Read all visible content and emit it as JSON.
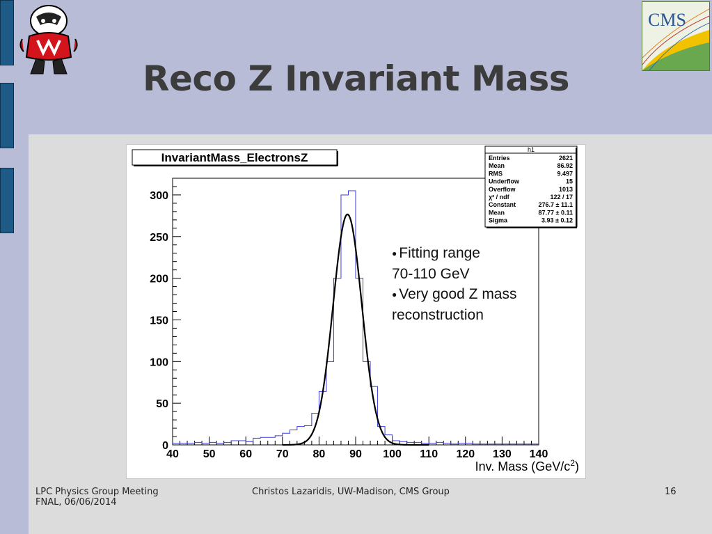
{
  "slide": {
    "title": "Reco Z Invariant Mass",
    "footer_left_line1": "LPC Physics Group Meeting",
    "footer_left_line2": "FNAL, 06/06/2014",
    "footer_center": "Christos Lazaridis, UW-Madison, CMS Group",
    "page_number": "16",
    "logos": [
      "badger-mascot-logo",
      "cms-logo"
    ],
    "cms_logo_text": "CMS",
    "bullets": [
      {
        "line1": "Fitting range",
        "line2": "70-110 GeV"
      },
      {
        "line1": "Very good Z mass",
        "line2": "reconstruction"
      }
    ]
  },
  "chart_data": {
    "type": "bar",
    "title": "InvariantMass_ElectronsZ",
    "xlabel": "Inv. Mass (GeV/c²)",
    "xlabel_main": "Inv. Mass (GeV/c",
    "xlabel_sup": "2",
    "xlabel_end": ")",
    "ylabel": "",
    "xlim": [
      40,
      140
    ],
    "ylim": [
      0,
      320
    ],
    "x_ticks": [
      "40",
      "50",
      "60",
      "70",
      "80",
      "90",
      "100",
      "110",
      "120",
      "130",
      "140"
    ],
    "y_ticks": [
      "0",
      "50",
      "100",
      "150",
      "200",
      "250",
      "300"
    ],
    "bin_width": 2,
    "bin_edges_start": 40,
    "values": [
      2,
      2,
      2,
      3,
      2,
      3,
      2,
      3,
      5,
      5,
      4,
      8,
      9,
      9,
      11,
      14,
      18,
      22,
      23,
      38,
      64,
      100,
      200,
      300,
      305,
      200,
      100,
      70,
      22,
      12,
      5,
      4,
      3,
      3,
      2,
      2,
      3,
      2,
      1,
      2,
      2,
      1,
      1,
      1,
      1,
      1,
      1,
      1,
      1,
      1
    ],
    "fit": {
      "function": "gaus",
      "constant": 276.7,
      "mean": 87.77,
      "sigma": 3.93,
      "range": [
        70,
        110
      ]
    },
    "stats_box": {
      "name": "h1",
      "rows": [
        {
          "label": "Entries",
          "value": "2621"
        },
        {
          "label": "Mean",
          "value": "86.92"
        },
        {
          "label": "RMS",
          "value": "9.497"
        },
        {
          "label": "Underflow",
          "value": "15"
        },
        {
          "label": "Overflow",
          "value": "1013"
        },
        {
          "label": "χ² / ndf",
          "value": "122 / 17"
        },
        {
          "label": "Constant",
          "value": "276.7 ± 11.1"
        },
        {
          "label": "Mean",
          "value": "87.77 ± 0.11"
        },
        {
          "label": "Sigma",
          "value": "3.93 ± 0.12"
        }
      ]
    },
    "histogram_color": "#3b3bd8",
    "fit_color": "#000000",
    "grid": false
  }
}
